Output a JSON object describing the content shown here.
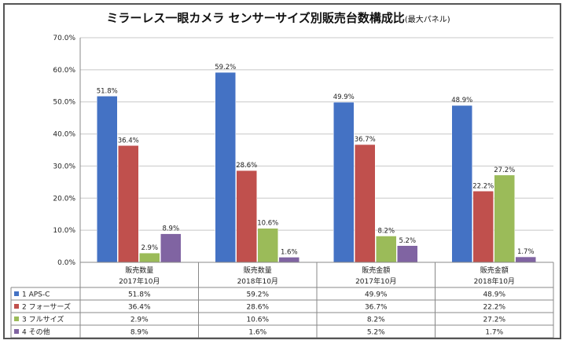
{
  "chart_data": {
    "type": "bar",
    "title": "ミラーレス一眼カメラ センサーサイズ別販売台数構成比",
    "subtitle": "(最大パネル)",
    "ylim": [
      0,
      70
    ],
    "ytick_labels": [
      "0.0%",
      "10.0%",
      "20.0%",
      "30.0%",
      "40.0%",
      "50.0%",
      "60.0%",
      "70.0%"
    ],
    "grid": true,
    "legend": "table-left",
    "categories": [
      {
        "line1": "販売数量",
        "line2": "2017年10月"
      },
      {
        "line1": "販売数量",
        "line2": "2018年10月"
      },
      {
        "line1": "販売金額",
        "line2": "2017年10月"
      },
      {
        "line1": "販売金額",
        "line2": "2018年10月"
      }
    ],
    "series": [
      {
        "name": "1 APS-C",
        "color": "#4472c4",
        "values": [
          51.8,
          59.2,
          49.9,
          48.9
        ],
        "labels": [
          "51.8%",
          "59.2%",
          "49.9%",
          "48.9%"
        ]
      },
      {
        "name": "2 フォーサーズ",
        "color": "#c0504d",
        "values": [
          36.4,
          28.6,
          36.7,
          22.2
        ],
        "labels": [
          "36.4%",
          "28.6%",
          "36.7%",
          "22.2%"
        ]
      },
      {
        "name": "3 フルサイズ",
        "color": "#9bbb59",
        "values": [
          2.9,
          10.6,
          8.2,
          27.2
        ],
        "labels": [
          "2.9%",
          "10.6%",
          "8.2%",
          "27.2%"
        ]
      },
      {
        "name": "4 その他",
        "color": "#8064a2",
        "values": [
          8.9,
          1.6,
          5.2,
          1.7
        ],
        "labels": [
          "8.9%",
          "1.6%",
          "5.2%",
          "1.7%"
        ]
      }
    ]
  }
}
